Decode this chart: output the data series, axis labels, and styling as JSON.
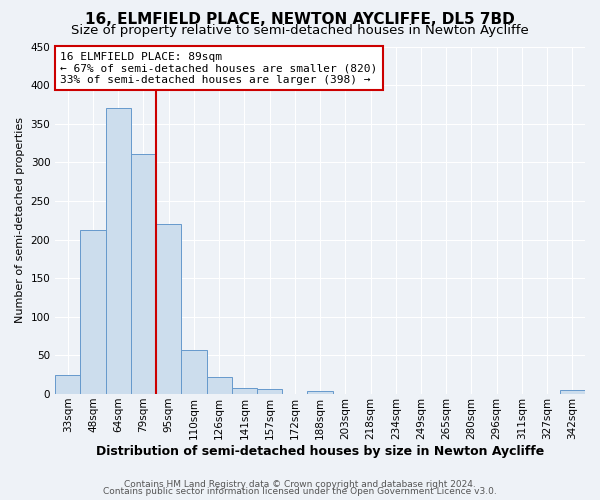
{
  "title": "16, ELMFIELD PLACE, NEWTON AYCLIFFE, DL5 7BD",
  "subtitle": "Size of property relative to semi-detached houses in Newton Aycliffe",
  "xlabel": "Distribution of semi-detached houses by size in Newton Aycliffe",
  "ylabel": "Number of semi-detached properties",
  "bin_labels": [
    "33sqm",
    "48sqm",
    "64sqm",
    "79sqm",
    "95sqm",
    "110sqm",
    "126sqm",
    "141sqm",
    "157sqm",
    "172sqm",
    "188sqm",
    "203sqm",
    "218sqm",
    "234sqm",
    "249sqm",
    "265sqm",
    "280sqm",
    "296sqm",
    "311sqm",
    "327sqm",
    "342sqm"
  ],
  "bin_values": [
    25,
    212,
    370,
    311,
    220,
    57,
    22,
    8,
    6,
    0,
    4,
    0,
    0,
    0,
    0,
    0,
    0,
    0,
    0,
    0,
    5
  ],
  "bar_color": "#ccdded",
  "bar_edge_color": "#6699cc",
  "property_line_x": 3.5,
  "property_line_label": "16 ELMFIELD PLACE: 89sqm",
  "annotation_line1": "← 67% of semi-detached houses are smaller (820)",
  "annotation_line2": "33% of semi-detached houses are larger (398) →",
  "annotation_box_color": "#cc0000",
  "ylim": [
    0,
    450
  ],
  "yticks": [
    0,
    50,
    100,
    150,
    200,
    250,
    300,
    350,
    400,
    450
  ],
  "footer1": "Contains HM Land Registry data © Crown copyright and database right 2024.",
  "footer2": "Contains public sector information licensed under the Open Government Licence v3.0.",
  "background_color": "#eef2f7",
  "grid_color": "#ffffff",
  "title_fontsize": 11,
  "subtitle_fontsize": 9.5,
  "xlabel_fontsize": 9,
  "ylabel_fontsize": 8,
  "tick_fontsize": 7.5,
  "annotation_fontsize": 8,
  "footer_fontsize": 6.5
}
